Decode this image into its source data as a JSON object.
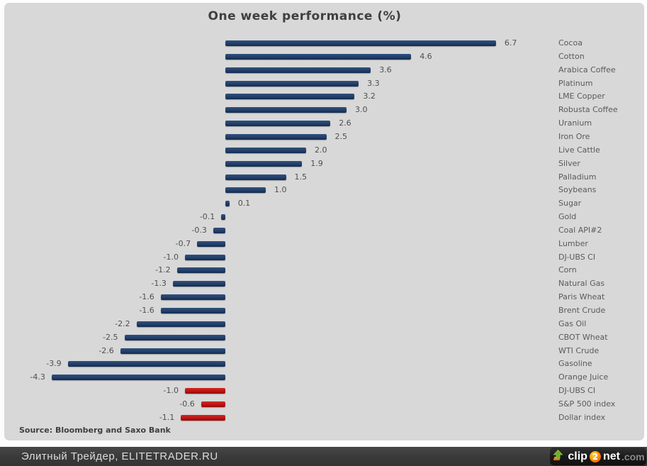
{
  "title": "One week performance (%)",
  "source_note": "Source: Bloomberg and Saxo Bank",
  "footer": {
    "credit": "Элитный Трейдер, ELITETRADER.RU",
    "logo": {
      "icon": "upload-arrow-icon",
      "part1": "clip",
      "badge": "2",
      "part2": "net",
      "tld": ".com"
    }
  },
  "colors": {
    "panel_bg": "#d8d8d8",
    "bar_blue": "#24426d",
    "bar_red": "#c01616",
    "text_gray": "#5a5a5a",
    "footer_bg": "#3a3a3a"
  },
  "chart_data": {
    "type": "bar",
    "orientation": "horizontal",
    "title": "One week performance (%)",
    "xlabel": "",
    "ylabel": "",
    "xlim": [
      -4.3,
      6.7
    ],
    "grid": false,
    "legend": false,
    "categories": [
      "Cocoa",
      "Cotton",
      "Arabica Coffee",
      "Platinum",
      "LME Copper",
      "Robusta Coffee",
      "Uranium",
      "Iron Ore",
      "Live Cattle",
      "Silver",
      "Palladium",
      "Soybeans",
      "Sugar",
      "Gold",
      "Coal API#2",
      "Lumber",
      "DJ-UBS CI",
      "Corn",
      "Natural Gas",
      "Paris Wheat",
      "Brent Crude",
      "Gas Oil",
      "CBOT Wheat",
      "WTI Crude",
      "Gasoline",
      "Orange Juice",
      "DJ-UBS CI",
      "S&P 500 index",
      "Dollar index"
    ],
    "values": [
      6.7,
      4.6,
      3.6,
      3.3,
      3.2,
      3.0,
      2.6,
      2.5,
      2.0,
      1.9,
      1.5,
      1.0,
      0.1,
      -0.1,
      -0.3,
      -0.7,
      -1.0,
      -1.2,
      -1.3,
      -1.6,
      -1.6,
      -2.2,
      -2.5,
      -2.6,
      -3.9,
      -4.3,
      -1.0,
      -0.6,
      -1.1
    ],
    "value_labels": [
      "6.7",
      "4.6",
      "3.6",
      "3.3",
      "3.2",
      "3.0",
      "2.6",
      "2.5",
      "2.0",
      "1.9",
      "1.5",
      "1.0",
      "0.1",
      "-0.1",
      "-0.3",
      "-0.7",
      "-1.0",
      "-1.2",
      "-1.3",
      "-1.6",
      "-1.6",
      "-2.2",
      "-2.5",
      "-2.6",
      "-3.9",
      "-4.3",
      "-1.0",
      "-0.6",
      "-1.1"
    ],
    "colors": [
      "blue",
      "blue",
      "blue",
      "blue",
      "blue",
      "blue",
      "blue",
      "blue",
      "blue",
      "blue",
      "blue",
      "blue",
      "blue",
      "blue",
      "blue",
      "blue",
      "blue",
      "blue",
      "blue",
      "blue",
      "blue",
      "blue",
      "blue",
      "blue",
      "blue",
      "blue",
      "red",
      "red",
      "red"
    ]
  }
}
